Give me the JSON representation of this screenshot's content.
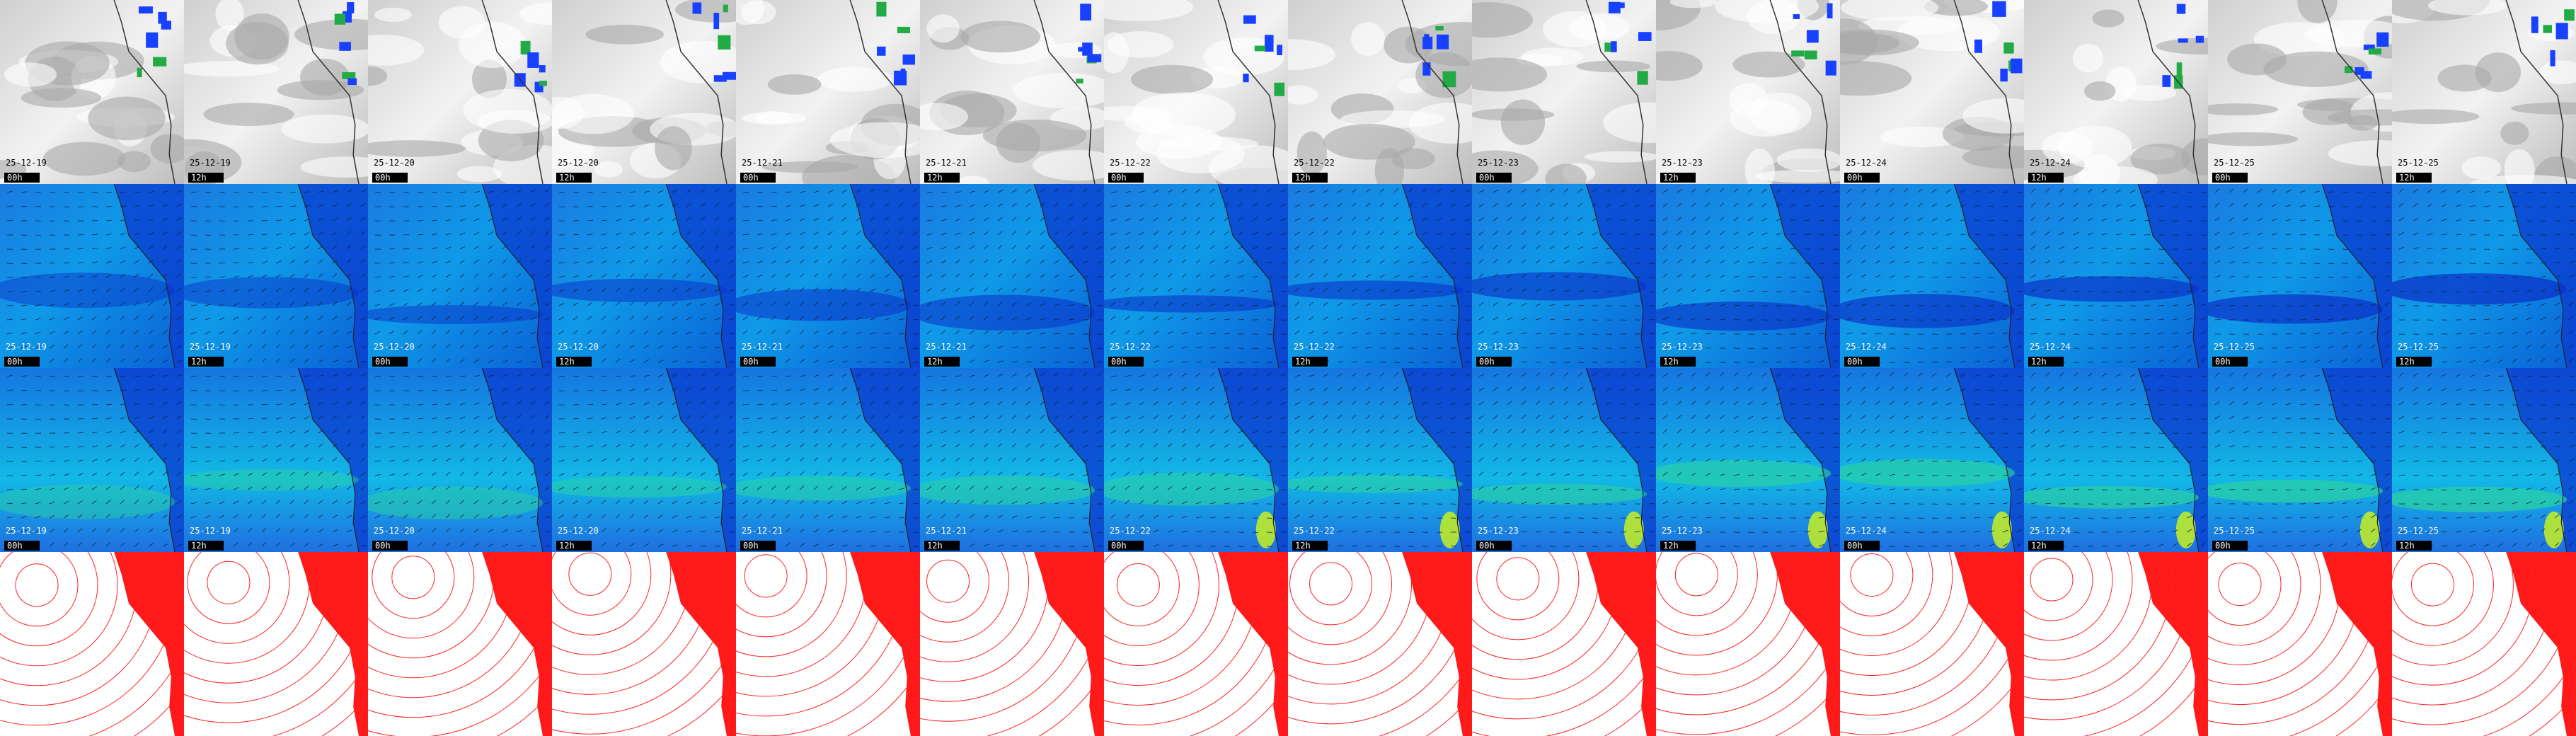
{
  "frames": [
    {
      "date": "25-12-19",
      "time": "00h"
    },
    {
      "date": "25-12-19",
      "time": "12h"
    },
    {
      "date": "25-12-20",
      "time": "00h"
    },
    {
      "date": "25-12-20",
      "time": "12h"
    },
    {
      "date": "25-12-21",
      "time": "00h"
    },
    {
      "date": "25-12-21",
      "time": "12h"
    },
    {
      "date": "25-12-22",
      "time": "00h"
    },
    {
      "date": "25-12-22",
      "time": "12h"
    },
    {
      "date": "25-12-23",
      "time": "00h"
    },
    {
      "date": "25-12-23",
      "time": "12h"
    },
    {
      "date": "25-12-24",
      "time": "00h"
    },
    {
      "date": "25-12-24",
      "time": "12h"
    },
    {
      "date": "25-12-25",
      "time": "00h"
    },
    {
      "date": "25-12-25",
      "time": "12h"
    }
  ]
}
